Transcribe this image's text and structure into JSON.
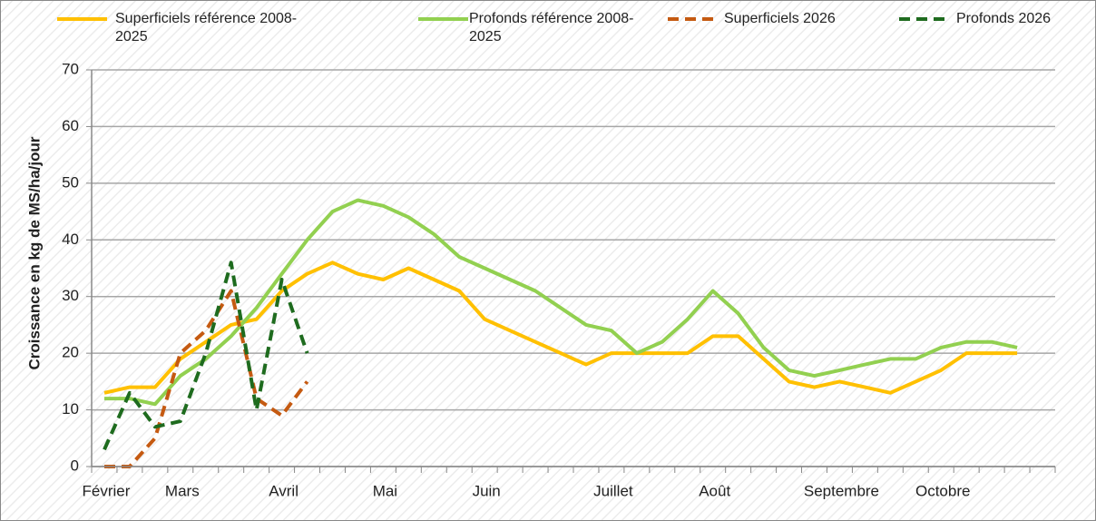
{
  "chart_data": {
    "type": "line",
    "y_label": "Croissance en kg de MS/ha/jour",
    "categories": [
      "Février",
      null,
      null,
      "Mars",
      null,
      null,
      null,
      "Avril",
      null,
      null,
      null,
      "Mai",
      null,
      null,
      null,
      "Juin",
      null,
      null,
      null,
      null,
      "Juillet",
      null,
      null,
      null,
      "Août",
      null,
      null,
      null,
      null,
      "Septembre",
      null,
      null,
      null,
      "Octobre",
      null,
      null,
      null,
      null
    ],
    "series": [
      {
        "name": "Superficiels référence 2008-2025",
        "color": "#ffc000",
        "dash": false,
        "values": [
          13,
          14,
          14,
          19,
          22,
          25,
          26,
          31,
          34,
          36,
          34,
          33,
          35,
          33,
          31,
          26,
          24,
          22,
          20,
          18,
          20,
          20,
          20,
          20,
          23,
          23,
          19,
          15,
          14,
          15,
          14,
          13,
          15,
          17,
          20,
          20,
          20,
          null
        ]
      },
      {
        "name": "Profonds référence 2008-2025",
        "color": "#92d050",
        "dash": false,
        "values": [
          12,
          12,
          11,
          16,
          19,
          23,
          28,
          34,
          40,
          45,
          47,
          46,
          44,
          41,
          37,
          35,
          33,
          31,
          28,
          25,
          24,
          20,
          22,
          26,
          31,
          27,
          21,
          17,
          16,
          17,
          18,
          19,
          19,
          21,
          22,
          22,
          21,
          null
        ]
      },
      {
        "name": "Superficiels 2026",
        "color": "#c55a11",
        "dash": true,
        "values": [
          0,
          0,
          5,
          20,
          24,
          31,
          12,
          9,
          15,
          null,
          null,
          null,
          null,
          null,
          null,
          null,
          null,
          null,
          null,
          null,
          null,
          null,
          null,
          null,
          null,
          null,
          null,
          null,
          null,
          null,
          null,
          null,
          null,
          null,
          null,
          null,
          null,
          null
        ]
      },
      {
        "name": "Profonds 2026",
        "color": "#1e6b1e",
        "dash": true,
        "values": [
          3,
          13,
          7,
          8,
          20,
          36,
          10,
          33,
          20,
          null,
          null,
          null,
          null,
          null,
          null,
          null,
          null,
          null,
          null,
          null,
          null,
          null,
          null,
          null,
          null,
          null,
          null,
          null,
          null,
          null,
          null,
          null,
          null,
          null,
          null,
          null,
          null,
          null
        ]
      }
    ],
    "ylim": [
      0,
      70
    ],
    "yticks": [
      0,
      10,
      20,
      30,
      40,
      50,
      60,
      70
    ],
    "grid": true
  }
}
